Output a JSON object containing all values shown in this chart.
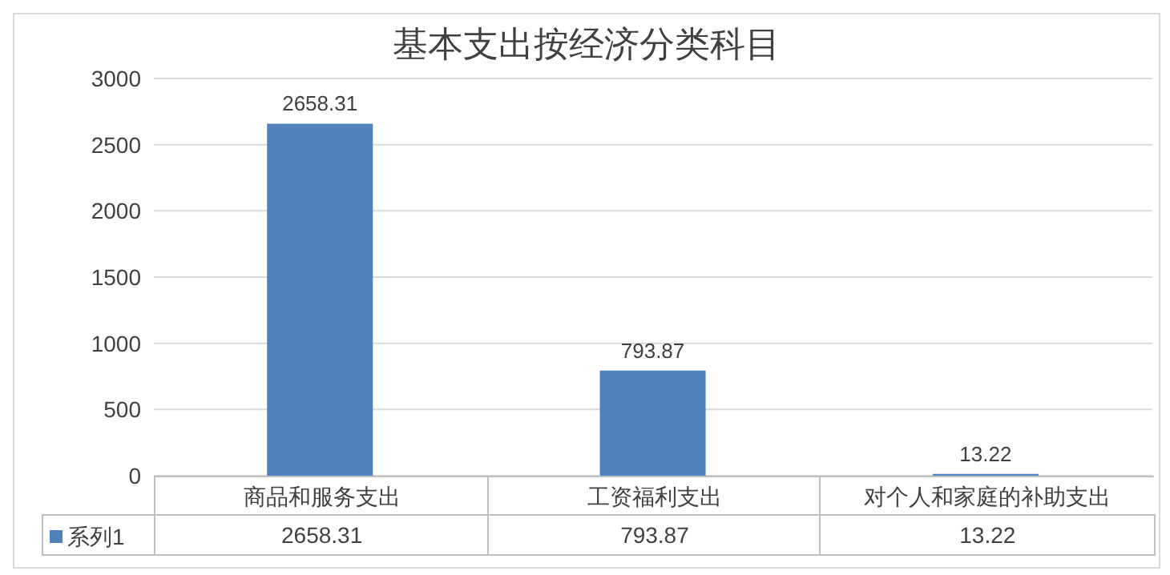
{
  "chart_data": {
    "type": "bar",
    "title": "基本支出按经济分类科目",
    "categories": [
      "商品和服务支出",
      "工资福利支出",
      "对个人和家庭的补助支出"
    ],
    "series": [
      {
        "name": "系列1",
        "color": "#4f81bd",
        "values": [
          2658.31,
          793.87,
          13.22
        ]
      }
    ],
    "annotations": [
      "2658.31",
      "793.87",
      "13.22"
    ],
    "ylim": [
      0,
      3000
    ],
    "yticks": [
      0,
      500,
      1000,
      1500,
      2000,
      2500,
      3000
    ],
    "grid": "y",
    "data_labels": true,
    "legend": "bottom"
  }
}
